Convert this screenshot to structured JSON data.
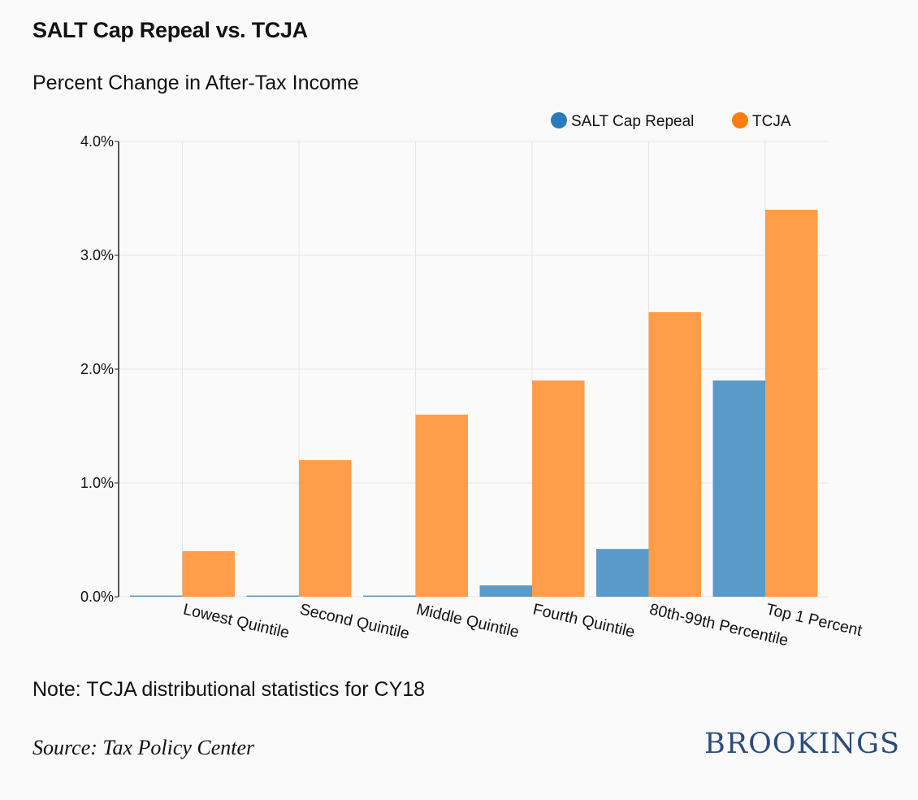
{
  "header": {
    "title": "SALT Cap Repeal vs. TCJA",
    "subtitle": "Percent Change in After-Tax Income"
  },
  "footer": {
    "note": "Note: TCJA distributional statistics for CY18",
    "source": "Source: Tax Policy Center",
    "logo": "BROOKINGS"
  },
  "colors": {
    "salt": "#5a9ac9",
    "salt_legend": "#2b7bba",
    "tcja": "#ff9d4a",
    "tcja_legend": "#ff7f0e",
    "grid": "#e6e6e6",
    "axis": "#222222"
  },
  "chart_data": {
    "type": "bar",
    "title": "SALT Cap Repeal vs. TCJA",
    "subtitle": "Percent Change in After-Tax Income",
    "xlabel": "",
    "ylabel": "",
    "categories": [
      "Lowest Quintile",
      "Second Quintile",
      "Middle Quintile",
      "Fourth Quintile",
      "80th-99th Percentile",
      "Top 1 Percent"
    ],
    "series": [
      {
        "name": "SALT Cap Repeal",
        "values": [
          0.01,
          0.01,
          0.01,
          0.1,
          0.42,
          1.9
        ]
      },
      {
        "name": "TCJA",
        "values": [
          0.4,
          1.2,
          1.6,
          1.9,
          2.5,
          3.4
        ]
      }
    ],
    "ylim": [
      0,
      4
    ],
    "yticks": [
      0,
      1,
      2,
      3,
      4
    ],
    "ytick_labels": [
      "0.0%",
      "1.0%",
      "2.0%",
      "3.0%",
      "4.0%"
    ],
    "grid": true,
    "legend": "top-right"
  }
}
